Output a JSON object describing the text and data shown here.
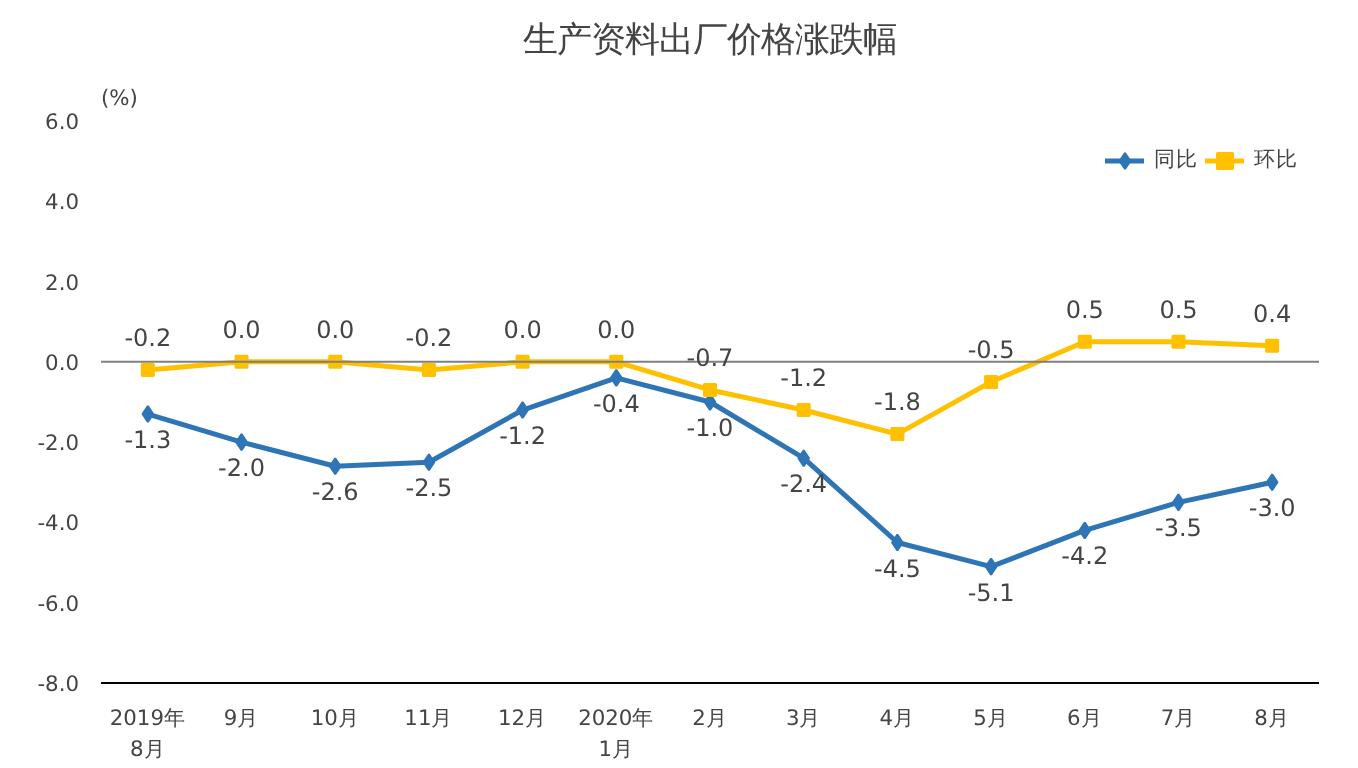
{
  "chart_data": {
    "type": "line",
    "title": "生产资料出厂价格涨跌幅",
    "ylabel": "(%)",
    "categories": [
      "2019年\n8月",
      "9月",
      "10月",
      "11月",
      "12月",
      "2020年\n1月",
      "2月",
      "3月",
      "4月",
      "5月",
      "6月",
      "7月",
      "8月"
    ],
    "series": [
      {
        "name": "同比",
        "color": "#2e75b6",
        "marker": "diamond",
        "values": [
          -1.3,
          -2.0,
          -2.6,
          -2.5,
          -1.2,
          -0.4,
          -1.0,
          -2.4,
          -4.5,
          -5.1,
          -4.2,
          -3.5,
          -3.0
        ],
        "value_labels": [
          "-1.3",
          "-2.0",
          "-2.6",
          "-2.5",
          "-1.2",
          "-0.4",
          "-1.0",
          "-2.4",
          "-4.5",
          "-5.1",
          "-4.2",
          "-3.5",
          "-3.0"
        ]
      },
      {
        "name": "环比",
        "color": "#ffc000",
        "marker": "square",
        "values": [
          -0.2,
          0.0,
          0.0,
          -0.2,
          0.0,
          0.0,
          -0.7,
          -1.2,
          -1.8,
          -0.5,
          0.5,
          0.5,
          0.4
        ],
        "value_labels": [
          "-0.2",
          "0.0",
          "0.0",
          "-0.2",
          "0.0",
          "0.0",
          "-0.7",
          "-1.2",
          "-1.8",
          "-0.5",
          "0.5",
          "0.5",
          "0.4"
        ]
      }
    ],
    "ylim": [
      -8,
      6
    ],
    "yticks": [
      {
        "value": -8,
        "label": "-8.0"
      },
      {
        "value": -6,
        "label": "-6.0"
      },
      {
        "value": -4,
        "label": "-4.0"
      },
      {
        "value": -2,
        "label": "-2.0"
      },
      {
        "value": 0,
        "label": "0.0"
      },
      {
        "value": 2,
        "label": "2.0"
      },
      {
        "value": 4,
        "label": "4.0"
      },
      {
        "value": 6,
        "label": "6.0"
      }
    ],
    "ref_lines": [
      {
        "axis": "y",
        "value": 0,
        "color": "#7f7f7f"
      }
    ],
    "grid": false,
    "legend": "top right",
    "line_style": "solid"
  }
}
